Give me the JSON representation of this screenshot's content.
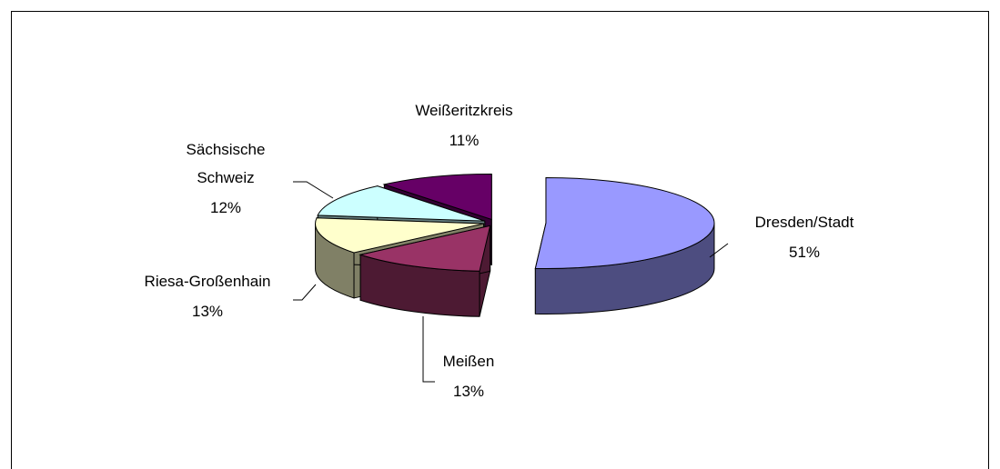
{
  "chart_data": {
    "type": "pie3d",
    "categories": [
      "Dresden/Stadt",
      "Meißen",
      "Riesa-Großenhain",
      "Sächsische Schweiz",
      "Weißeritzkreis"
    ],
    "values": [
      51,
      13,
      13,
      12,
      11
    ],
    "value_labels": [
      "51%",
      "13%",
      "13%",
      "12%",
      "11%"
    ],
    "colors": [
      "#9999ff",
      "#993366",
      "#ffffcc",
      "#ccffff",
      "#660066"
    ]
  }
}
